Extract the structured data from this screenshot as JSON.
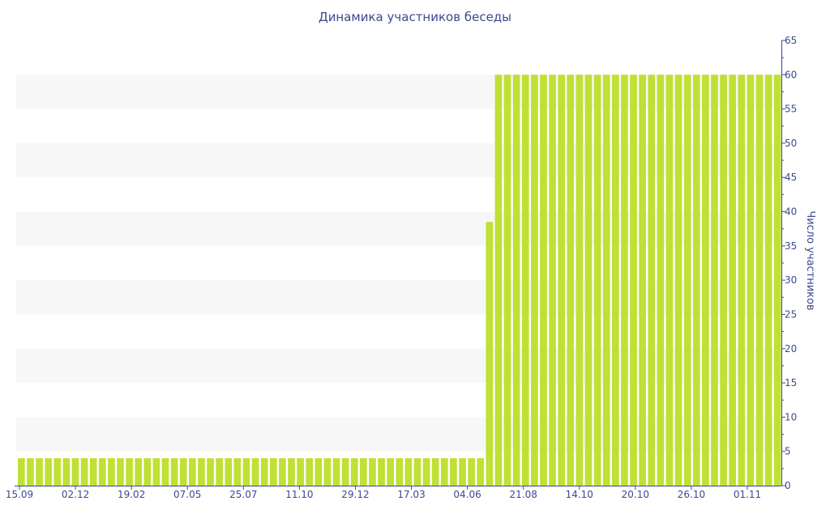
{
  "chart_data": {
    "type": "bar",
    "title": "Динамика участников беседы",
    "xlabel": "",
    "ylabel": "Число участников",
    "ylim": [
      0,
      65
    ],
    "yticks": [
      0,
      5,
      10,
      15,
      20,
      25,
      30,
      35,
      40,
      45,
      50,
      55,
      60,
      65
    ],
    "y_axis_side": "right",
    "x_tick_labels": [
      "15.09",
      "02.12",
      "19.02",
      "07.05",
      "25.07",
      "11.10",
      "29.12",
      "17.03",
      "04.06",
      "21.08",
      "14.10",
      "20.10",
      "26.10",
      "01.11"
    ],
    "grid": "alternating horizontal bands",
    "series": [
      {
        "color": "#bfe034",
        "values": [
          4,
          4,
          4,
          4,
          4,
          4,
          4,
          4,
          4,
          4,
          4,
          4,
          4,
          4,
          4,
          4,
          4,
          4,
          4,
          4,
          4,
          4,
          4,
          4,
          4,
          4,
          4,
          4,
          4,
          4,
          4,
          4,
          4,
          4,
          4,
          4,
          4,
          4,
          4,
          4,
          4,
          4,
          4,
          4,
          4,
          4,
          4,
          4,
          4,
          4,
          4,
          4,
          38.5,
          60,
          60,
          60,
          60,
          60,
          60,
          60,
          60,
          60,
          60,
          60,
          60,
          60,
          60,
          60,
          60,
          60,
          60,
          60,
          60,
          60,
          60,
          60,
          60,
          60,
          60,
          60,
          60,
          60,
          60,
          60,
          60
        ]
      }
    ]
  }
}
